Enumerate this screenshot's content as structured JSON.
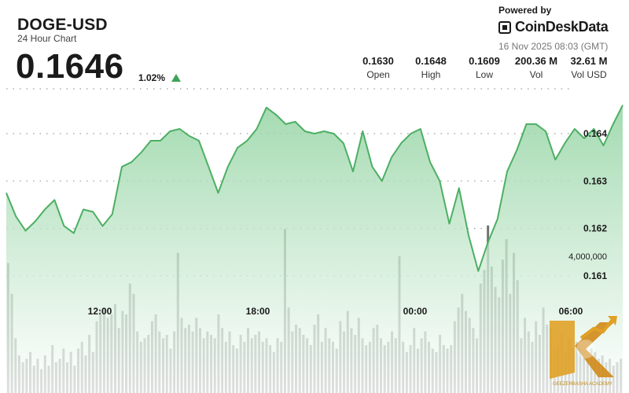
{
  "header": {
    "title": "DOGE-USD",
    "subtitle": "24 Hour Chart",
    "price": "0.1646",
    "change_pct": "1.02%"
  },
  "branding": {
    "powered_by": "Powered by",
    "name": "CoinDeskData",
    "timestamp": "16 Nov 2025 08:03 (GMT)",
    "watermark": "GEEZERBASHA ACADEMY"
  },
  "stats": [
    {
      "value": "0.1630",
      "label": "Open"
    },
    {
      "value": "0.1648",
      "label": "High"
    },
    {
      "value": "0.1609",
      "label": "Low"
    },
    {
      "value": "200.36 M",
      "label": "Vol"
    },
    {
      "value": "32.61 M",
      "label": "Vol USD"
    }
  ],
  "colors": {
    "line": "#4caf63",
    "area_top": "#8fd29f",
    "area_bottom": "#ffffff",
    "volume": "#5f6660",
    "up": "#3fa35a"
  },
  "chart_data": {
    "type": "area",
    "x_ticks": [
      "12:00",
      "18:00",
      "00:00",
      "06:00"
    ],
    "y_ticks": [
      0.161,
      0.162,
      0.163,
      0.164
    ],
    "volume_tick": "4,000,000",
    "ylim": [
      0.1604,
      0.1649
    ],
    "price_series": [
      {
        "t": 0,
        "y": 0.16275
      },
      {
        "t": 0.5,
        "y": 0.16225
      },
      {
        "t": 1.0,
        "y": 0.16195
      },
      {
        "t": 1.5,
        "y": 0.16215
      },
      {
        "t": 2.0,
        "y": 0.1624
      },
      {
        "t": 2.5,
        "y": 0.1626
      },
      {
        "t": 3.0,
        "y": 0.16205
      },
      {
        "t": 3.5,
        "y": 0.1619
      },
      {
        "t": 4.0,
        "y": 0.1624
      },
      {
        "t": 4.5,
        "y": 0.16235
      },
      {
        "t": 5.0,
        "y": 0.16205
      },
      {
        "t": 5.5,
        "y": 0.1623
      },
      {
        "t": 6.0,
        "y": 0.1633
      },
      {
        "t": 6.5,
        "y": 0.1634
      },
      {
        "t": 7.0,
        "y": 0.1636
      },
      {
        "t": 7.5,
        "y": 0.16385
      },
      {
        "t": 8.0,
        "y": 0.16385
      },
      {
        "t": 8.5,
        "y": 0.16405
      },
      {
        "t": 9.0,
        "y": 0.1641
      },
      {
        "t": 9.5,
        "y": 0.16395
      },
      {
        "t": 10.0,
        "y": 0.16385
      },
      {
        "t": 10.5,
        "y": 0.1633
      },
      {
        "t": 11.0,
        "y": 0.16275
      },
      {
        "t": 11.5,
        "y": 0.1633
      },
      {
        "t": 12.0,
        "y": 0.1637
      },
      {
        "t": 12.5,
        "y": 0.16385
      },
      {
        "t": 13.0,
        "y": 0.1641
      },
      {
        "t": 13.5,
        "y": 0.16455
      },
      {
        "t": 14.0,
        "y": 0.1644
      },
      {
        "t": 14.5,
        "y": 0.1642
      },
      {
        "t": 15.0,
        "y": 0.16425
      },
      {
        "t": 15.5,
        "y": 0.16405
      },
      {
        "t": 16.0,
        "y": 0.164
      },
      {
        "t": 16.5,
        "y": 0.16405
      },
      {
        "t": 17.0,
        "y": 0.164
      },
      {
        "t": 17.5,
        "y": 0.1638
      },
      {
        "t": 18.0,
        "y": 0.1632
      },
      {
        "t": 18.5,
        "y": 0.16405
      },
      {
        "t": 19.0,
        "y": 0.1633
      },
      {
        "t": 19.5,
        "y": 0.163
      },
      {
        "t": 20.0,
        "y": 0.1635
      },
      {
        "t": 20.5,
        "y": 0.1638
      },
      {
        "t": 21.0,
        "y": 0.164
      },
      {
        "t": 21.5,
        "y": 0.1641
      },
      {
        "t": 22.0,
        "y": 0.1634
      },
      {
        "t": 22.5,
        "y": 0.163
      },
      {
        "t": 23.0,
        "y": 0.1621
      },
      {
        "t": 23.5,
        "y": 0.16285
      },
      {
        "t": 24.0,
        "y": 0.16185
      },
      {
        "t": 24.5,
        "y": 0.1611
      },
      {
        "t": 25.0,
        "y": 0.1617
      },
      {
        "t": 25.5,
        "y": 0.1622
      },
      {
        "t": 26.0,
        "y": 0.1632
      },
      {
        "t": 26.5,
        "y": 0.16365
      },
      {
        "t": 27.0,
        "y": 0.1642
      },
      {
        "t": 27.5,
        "y": 0.1642
      },
      {
        "t": 28.0,
        "y": 0.16405
      },
      {
        "t": 28.5,
        "y": 0.16345
      },
      {
        "t": 29.0,
        "y": 0.1638
      },
      {
        "t": 29.5,
        "y": 0.1641
      },
      {
        "t": 30.0,
        "y": 0.1639
      },
      {
        "t": 30.5,
        "y": 0.1641
      },
      {
        "t": 31.0,
        "y": 0.16375
      },
      {
        "t": 31.5,
        "y": 0.1642
      },
      {
        "t": 32.0,
        "y": 0.1646
      }
    ],
    "volume_millions": [
      3.8,
      2.9,
      1.6,
      1.1,
      0.9,
      1.0,
      1.2,
      0.8,
      1.0,
      0.7,
      1.1,
      0.8,
      1.4,
      0.9,
      1.0,
      1.3,
      0.9,
      1.2,
      0.8,
      1.3,
      1.5,
      1.1,
      1.7,
      1.2,
      2.1,
      2.4,
      2.5,
      2.2,
      2.3,
      2.6,
      1.9,
      2.4,
      2.3,
      3.2,
      2.9,
      1.8,
      1.5,
      1.6,
      1.7,
      2.1,
      2.3,
      1.8,
      1.6,
      1.7,
      1.3,
      1.8,
      4.1,
      2.2,
      1.9,
      2.0,
      1.8,
      2.2,
      1.9,
      1.6,
      1.8,
      1.7,
      1.6,
      2.3,
      1.9,
      1.5,
      1.8,
      1.4,
      1.3,
      1.7,
      1.5,
      1.9,
      1.6,
      1.7,
      1.8,
      1.5,
      1.6,
      1.4,
      1.2,
      1.6,
      1.5,
      4.8,
      2.5,
      1.8,
      2.0,
      1.9,
      1.7,
      1.6,
      1.4,
      2.0,
      2.3,
      1.5,
      1.9,
      1.6,
      1.5,
      1.3,
      2.1,
      1.8,
      2.4,
      1.9,
      1.7,
      2.2,
      1.6,
      1.4,
      1.5,
      1.9,
      2.0,
      1.6,
      1.4,
      1.5,
      1.8,
      1.6,
      4.0,
      1.5,
      1.2,
      1.4,
      1.9,
      1.3,
      1.6,
      1.8,
      1.5,
      1.3,
      1.2,
      1.7,
      1.4,
      1.3,
      1.4,
      2.1,
      2.5,
      2.9,
      2.4,
      2.2,
      1.9,
      1.6,
      3.2,
      3.6,
      4.9,
      3.7,
      3.1,
      2.8,
      3.9,
      4.5,
      2.9,
      4.1,
      3.3,
      1.6,
      2.2,
      1.8,
      1.5,
      2.1,
      1.7,
      2.5,
      2.0,
      1.9,
      1.3,
      1.4,
      1.8,
      1.2,
      1.6,
      1.3,
      1.5,
      1.4,
      1.2,
      1.1,
      1.3,
      1.2,
      1.0,
      1.1,
      0.9,
      1.0,
      0.8,
      0.9,
      1.0
    ]
  }
}
